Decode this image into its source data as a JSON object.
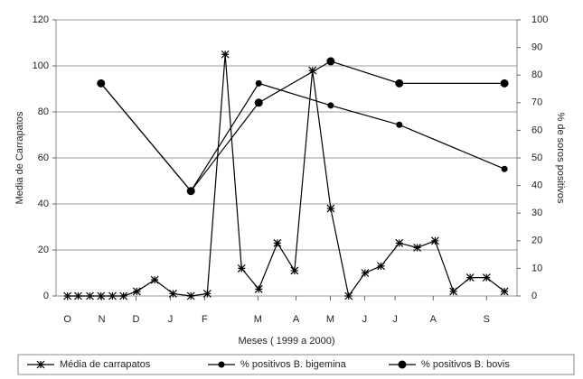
{
  "chart_data": {
    "type": "line",
    "x_label": "Meses ( 1999 a 2000)",
    "y_label": "Media de Carrapatos",
    "y2_label": "% de soros positivos",
    "xlim": [
      -0.3,
      11.8
    ],
    "xticks": [
      {
        "value": 0,
        "label": "O"
      },
      {
        "value": 0.9,
        "label": "N"
      },
      {
        "value": 1.8,
        "label": "D"
      },
      {
        "value": 2.7,
        "label": "J"
      },
      {
        "value": 3.6,
        "label": "F"
      },
      {
        "value": 5.0,
        "label": "M"
      },
      {
        "value": 6.0,
        "label": "A"
      },
      {
        "value": 6.9,
        "label": "M"
      },
      {
        "value": 7.8,
        "label": "J"
      },
      {
        "value": 8.6,
        "label": "J"
      },
      {
        "value": 9.6,
        "label": "A"
      },
      {
        "value": 11.0,
        "label": "S"
      }
    ],
    "ylim": [
      0,
      120
    ],
    "yticks": [
      0,
      20,
      40,
      60,
      80,
      100,
      120
    ],
    "y2lim": [
      0,
      100
    ],
    "y2ticks": [
      0,
      10,
      20,
      30,
      40,
      50,
      60,
      70,
      80,
      90,
      100
    ],
    "grid": true,
    "series": [
      {
        "name": "Média de carrapatos",
        "color": "#000000",
        "marker": "star",
        "x": [
          0,
          0.28,
          0.59,
          0.88,
          1.18,
          1.47,
          1.82,
          2.29,
          2.77,
          3.24,
          3.67,
          4.14,
          4.57,
          5.02,
          5.51,
          5.96,
          6.43,
          6.91,
          7.38,
          7.81,
          8.23,
          8.71,
          9.18,
          9.65,
          10.13,
          10.57,
          11.0,
          11.47
        ],
        "values": [
          0,
          0,
          0,
          0,
          0,
          0,
          2,
          7,
          1,
          0,
          1,
          105,
          12,
          3,
          23,
          11,
          98,
          38,
          0,
          10,
          13,
          23,
          21,
          24,
          2,
          8,
          8,
          2
        ]
      },
      {
        "name": "% positivos B. bigemina",
        "color": "#000000",
        "marker": "small-dot",
        "axis": "y2",
        "x": [
          0.88,
          3.24,
          5.02,
          6.91,
          8.71,
          11.47
        ],
        "values": [
          77,
          38,
          77,
          69,
          62,
          46
        ]
      },
      {
        "name": "% positivos B. bovis",
        "color": "#000000",
        "marker": "dot",
        "axis": "y2",
        "x": [
          0.88,
          3.24,
          5.02,
          6.91,
          8.71,
          11.47
        ],
        "values": [
          77,
          38,
          70,
          85,
          77,
          77
        ]
      }
    ]
  }
}
